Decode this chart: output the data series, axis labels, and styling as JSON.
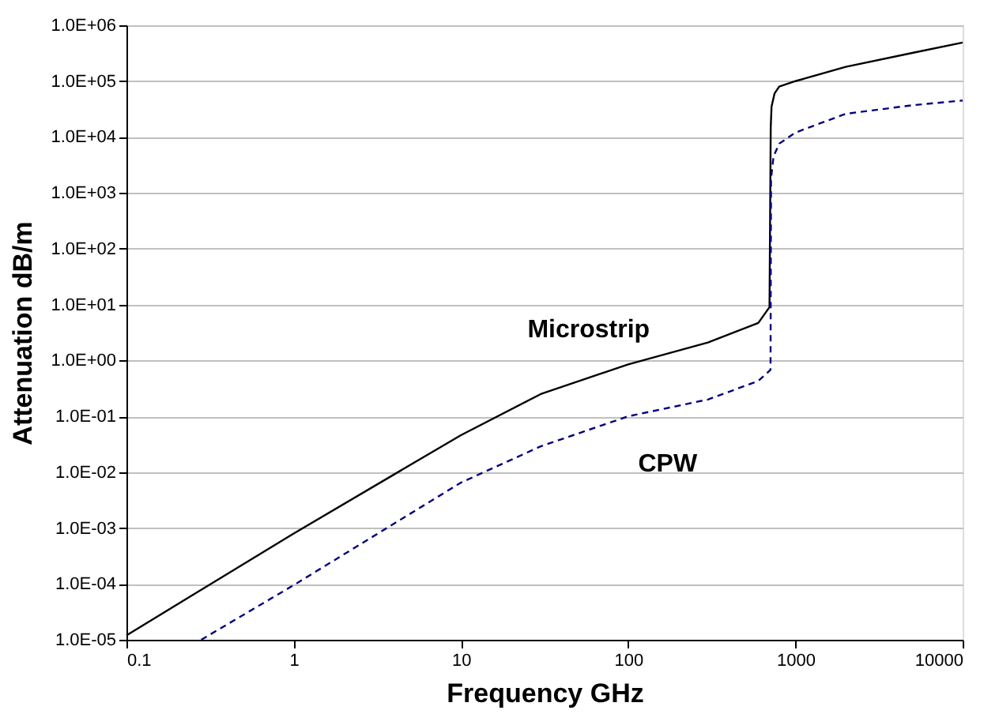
{
  "chart_data": {
    "type": "line",
    "xlabel": "Frequency GHz",
    "ylabel": "Attenuation dB/m",
    "log": "xy",
    "xlim": [
      0.1,
      10000
    ],
    "xticks": [
      0.1,
      1,
      10,
      100,
      1000,
      10000
    ],
    "ylim": [
      1e-05,
      1000000
    ],
    "yticks": [
      {
        "value": 1e-05,
        "label": "1.0E-05"
      },
      {
        "value": 0.0001,
        "label": "1.0E-04"
      },
      {
        "value": 0.001,
        "label": "1.0E-03"
      },
      {
        "value": 0.01,
        "label": "1.0E-02"
      },
      {
        "value": 0.1,
        "label": "1.0E-01"
      },
      {
        "value": 1,
        "label": "1.0E+00"
      },
      {
        "value": 10,
        "label": "1.0E+01"
      },
      {
        "value": 100,
        "label": "1.0E+02"
      },
      {
        "value": 1000,
        "label": "1.0E+03"
      },
      {
        "value": 10000,
        "label": "1.0E+04"
      },
      {
        "value": 100000,
        "label": "1.0E+05"
      },
      {
        "value": 1000000,
        "label": "1.0E+06"
      }
    ],
    "grid": "y",
    "legend": false,
    "marker": "none",
    "series": [
      {
        "name": "Microstrip",
        "color": "#000000",
        "line_style": "solid",
        "x": [
          0.1,
          1,
          10,
          30,
          100,
          300,
          600,
          700,
          712,
          720,
          750,
          800,
          1000,
          2000,
          5000,
          10000
        ],
        "values": [
          1.2e-05,
          0.0008,
          0.046,
          0.25,
          0.85,
          2.1,
          4.7,
          9,
          15000,
          35000,
          60000,
          80000,
          100000,
          180000,
          320000,
          490000
        ]
      },
      {
        "name": "CPW",
        "color": "#000080",
        "line_style": "dashed",
        "x": [
          0.28,
          1,
          10,
          30,
          100,
          300,
          600,
          710,
          715,
          740,
          800,
          1000,
          2000,
          5000,
          10000
        ],
        "values": [
          1e-05,
          9.5e-05,
          0.0065,
          0.029,
          0.1,
          0.2,
          0.43,
          0.68,
          1800,
          4500,
          7600,
          12000,
          26000,
          37000,
          45000
        ]
      }
    ]
  }
}
